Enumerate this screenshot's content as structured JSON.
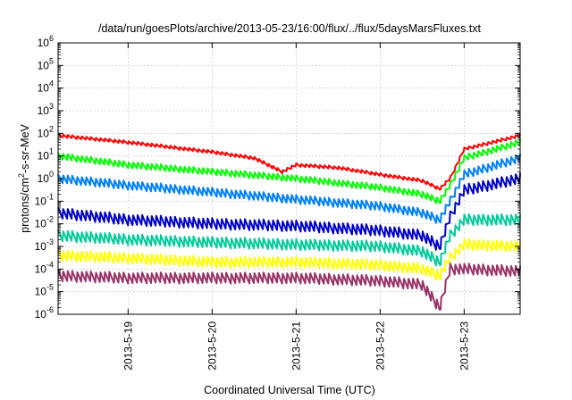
{
  "chart_data": {
    "type": "line",
    "title": "/data/run/goesPlots/archive/2013-05-23/16:00/flux/../flux/5daysMarsFluxes.txt",
    "xlabel": "Coordinated Universal Time (UTC)",
    "ylabel": {
      "base": "protons/cm",
      "sup": "2",
      "rest": "-s-sr-MeV"
    },
    "y_scale": "log",
    "ylim_exponents": [
      -6,
      6
    ],
    "y_ticks": [
      {
        "base": "10",
        "exp": "-6"
      },
      {
        "base": "10",
        "exp": "-5"
      },
      {
        "base": "10",
        "exp": "-4"
      },
      {
        "base": "10",
        "exp": "-3"
      },
      {
        "base": "10",
        "exp": "-2"
      },
      {
        "base": "10",
        "exp": "-1"
      },
      {
        "base": "10",
        "exp": "0"
      },
      {
        "base": "10",
        "exp": "1"
      },
      {
        "base": "10",
        "exp": "2"
      },
      {
        "base": "10",
        "exp": "3"
      },
      {
        "base": "10",
        "exp": "4"
      },
      {
        "base": "10",
        "exp": "5"
      },
      {
        "base": "10",
        "exp": "6"
      }
    ],
    "xlim": [
      "2013-05-18 04:00",
      "2013-05-23 16:00"
    ],
    "x_ticks": [
      {
        "label": "2013-5-19",
        "t": "2013-05-19 00:00"
      },
      {
        "label": "2013-5-20",
        "t": "2013-05-20 00:00"
      },
      {
        "label": "2013-5-21",
        "t": "2013-05-21 00:00"
      },
      {
        "label": "2013-5-22",
        "t": "2013-05-22 00:00"
      },
      {
        "label": "2013-5-23",
        "t": "2013-05-23 00:00"
      }
    ],
    "grid": true,
    "legend": "none",
    "series": [
      {
        "color": "#ff0000",
        "sawtooth": 0.15,
        "points": [
          [
            "2013-05-18 04:00",
            80
          ],
          [
            "2013-05-19 00:00",
            40
          ],
          [
            "2013-05-20 00:00",
            15
          ],
          [
            "2013-05-20 12:00",
            8
          ],
          [
            "2013-05-20 20:00",
            2
          ],
          [
            "2013-05-21 00:00",
            4
          ],
          [
            "2013-05-21 12:00",
            3
          ],
          [
            "2013-05-22 00:00",
            1.5
          ],
          [
            "2013-05-22 12:00",
            0.8
          ],
          [
            "2013-05-22 17:00",
            0.35
          ],
          [
            "2013-05-22 20:00",
            1
          ],
          [
            "2013-05-23 00:00",
            20
          ],
          [
            "2013-05-23 16:00",
            80
          ]
        ]
      },
      {
        "color": "#00ff00",
        "sawtooth": 0.3,
        "points": [
          [
            "2013-05-18 04:00",
            10
          ],
          [
            "2013-05-19 00:00",
            4
          ],
          [
            "2013-05-20 00:00",
            2
          ],
          [
            "2013-05-21 00:00",
            1
          ],
          [
            "2013-05-22 00:00",
            0.4
          ],
          [
            "2013-05-22 12:00",
            0.2
          ],
          [
            "2013-05-22 17:00",
            0.1
          ],
          [
            "2013-05-22 20:00",
            0.5
          ],
          [
            "2013-05-23 00:00",
            8
          ],
          [
            "2013-05-23 16:00",
            40
          ]
        ]
      },
      {
        "color": "#0080ff",
        "sawtooth": 0.4,
        "points": [
          [
            "2013-05-18 04:00",
            1
          ],
          [
            "2013-05-19 00:00",
            0.5
          ],
          [
            "2013-05-20 00:00",
            0.25
          ],
          [
            "2013-05-21 00:00",
            0.12
          ],
          [
            "2013-05-22 00:00",
            0.06
          ],
          [
            "2013-05-22 12:00",
            0.03
          ],
          [
            "2013-05-22 17:00",
            0.015
          ],
          [
            "2013-05-22 20:00",
            0.1
          ],
          [
            "2013-05-23 00:00",
            1.5
          ],
          [
            "2013-05-23 16:00",
            8
          ]
        ]
      },
      {
        "color": "#0000cc",
        "sawtooth": 0.5,
        "points": [
          [
            "2013-05-18 04:00",
            0.03
          ],
          [
            "2013-05-19 00:00",
            0.015
          ],
          [
            "2013-05-20 00:00",
            0.01
          ],
          [
            "2013-05-21 00:00",
            0.008
          ],
          [
            "2013-05-22 00:00",
            0.005
          ],
          [
            "2013-05-22 12:00",
            0.003
          ],
          [
            "2013-05-22 17:00",
            0.001
          ],
          [
            "2013-05-22 20:00",
            0.02
          ],
          [
            "2013-05-23 00:00",
            0.3
          ],
          [
            "2013-05-23 16:00",
            1
          ]
        ]
      },
      {
        "color": "#00cc99",
        "sawtooth": 0.5,
        "points": [
          [
            "2013-05-18 04:00",
            0.003
          ],
          [
            "2013-05-19 00:00",
            0.002
          ],
          [
            "2013-05-20 00:00",
            0.0015
          ],
          [
            "2013-05-21 00:00",
            0.0012
          ],
          [
            "2013-05-22 00:00",
            0.001
          ],
          [
            "2013-05-22 12:00",
            0.0006
          ],
          [
            "2013-05-22 17:00",
            0.0002
          ],
          [
            "2013-05-22 20:00",
            0.003
          ],
          [
            "2013-05-23 00:00",
            0.015
          ],
          [
            "2013-05-23 16:00",
            0.015
          ]
        ]
      },
      {
        "color": "#ffff00",
        "sawtooth": 0.5,
        "points": [
          [
            "2013-05-18 04:00",
            0.0004
          ],
          [
            "2013-05-19 00:00",
            0.0003
          ],
          [
            "2013-05-20 00:00",
            0.0002
          ],
          [
            "2013-05-21 00:00",
            0.0002
          ],
          [
            "2013-05-22 00:00",
            0.00015
          ],
          [
            "2013-05-22 12:00",
            0.0001
          ],
          [
            "2013-05-22 17:00",
            5e-05
          ],
          [
            "2013-05-22 20:00",
            0.0003
          ],
          [
            "2013-05-23 00:00",
            0.0012
          ],
          [
            "2013-05-23 16:00",
            0.001
          ]
        ]
      },
      {
        "color": "#993366",
        "sawtooth": 0.5,
        "points": [
          [
            "2013-05-18 04:00",
            5e-05
          ],
          [
            "2013-05-19 00:00",
            4e-05
          ],
          [
            "2013-05-20 00:00",
            4e-05
          ],
          [
            "2013-05-21 00:00",
            4e-05
          ],
          [
            "2013-05-22 00:00",
            3e-05
          ],
          [
            "2013-05-22 12:00",
            2e-05
          ],
          [
            "2013-05-22 17:00",
            2e-06
          ],
          [
            "2013-05-22 20:00",
            0.0001
          ],
          [
            "2013-05-23 00:00",
            0.0001
          ],
          [
            "2013-05-23 16:00",
            8e-05
          ]
        ]
      }
    ]
  }
}
